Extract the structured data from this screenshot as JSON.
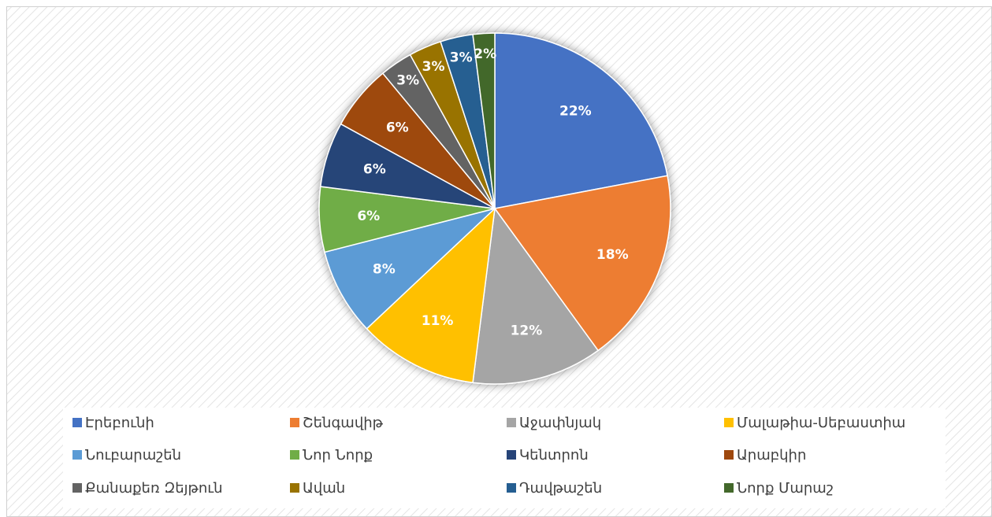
{
  "chart_data": {
    "type": "pie",
    "categories": [
      "Էրեբունի",
      "Շենգավիթ",
      "Աջափնյակ",
      "Մալաթիա-Սեբաստիա",
      "Նուբարաշեն",
      "Նոր Նորք",
      "Կենտրոն",
      "Արաբկիր",
      "Քանաքեռ Զեյթուն",
      "Ավան",
      "Դավթաշեն",
      "Նորք Մարաշ"
    ],
    "values": [
      22,
      18,
      12,
      11,
      8,
      6,
      6,
      6,
      3,
      3,
      3,
      2
    ],
    "value_labels": [
      "22%",
      "18%",
      "12%",
      "11%",
      "8%",
      "6%",
      "6%",
      "6%",
      "3%",
      "3%",
      "3%",
      "2%"
    ],
    "colors": [
      "#4472c4",
      "#ed7d31",
      "#a5a5a5",
      "#ffc000",
      "#5b9bd5",
      "#70ad47",
      "#264478",
      "#9e480e",
      "#636363",
      "#997300",
      "#255e91",
      "#43682b"
    ],
    "legend": "bottom"
  }
}
